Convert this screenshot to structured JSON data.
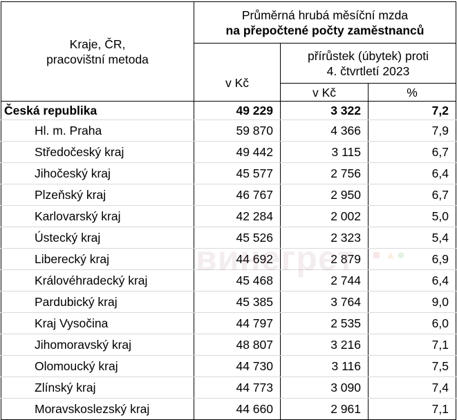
{
  "header": {
    "region_col": "Kraje, ČR,",
    "region_col_2": "pracovištní metoda",
    "title_line1": "Průměrná hrubá měsíční mzda",
    "title_line2": "na přepočtené počty zaměstnanců",
    "wage_col": "v Kč",
    "change_line1": "přírůstek (úbytek) proti",
    "change_line2": "4. čtvrtletí 2023",
    "change_czk": "v Kč",
    "change_pct": "%"
  },
  "rows": [
    {
      "name": "Česká republika",
      "wage": "49 229",
      "change": "3 322",
      "pct": "7,2"
    },
    {
      "name": "Hl. m. Praha",
      "wage": "59 870",
      "change": "4 366",
      "pct": "7,9"
    },
    {
      "name": "Středočeský kraj",
      "wage": "49 442",
      "change": "3 115",
      "pct": "6,7"
    },
    {
      "name": "Jihočeský kraj",
      "wage": "45 577",
      "change": "2 756",
      "pct": "6,4"
    },
    {
      "name": "Plzeňský kraj",
      "wage": "46 767",
      "change": "2 950",
      "pct": "6,7"
    },
    {
      "name": "Karlovarský kraj",
      "wage": "42 284",
      "change": "2 002",
      "pct": "5,0"
    },
    {
      "name": "Ústecký kraj",
      "wage": "45 526",
      "change": "2 323",
      "pct": "5,4"
    },
    {
      "name": "Liberecký kraj",
      "wage": "44 692",
      "change": "2 879",
      "pct": "6,9"
    },
    {
      "name": "Královéhradecký kraj",
      "wage": "45 468",
      "change": "2 744",
      "pct": "6,4"
    },
    {
      "name": "Pardubický kraj",
      "wage": "45 385",
      "change": "3 764",
      "pct": "9,0"
    },
    {
      "name": "Kraj Vysočina",
      "wage": "44 797",
      "change": "2 535",
      "pct": "6,0"
    },
    {
      "name": "Jihomoravský kraj",
      "wage": "48 807",
      "change": "3 216",
      "pct": "7,1"
    },
    {
      "name": "Olomoucký kraj",
      "wage": "44 730",
      "change": "3 116",
      "pct": "7,5"
    },
    {
      "name": "Zlínský kraj",
      "wage": "44 773",
      "change": "3 090",
      "pct": "7,4"
    },
    {
      "name": "Moravskoslezský kraj",
      "wage": "44 660",
      "change": "2 961",
      "pct": "7,1"
    }
  ],
  "watermark": "винегрет"
}
